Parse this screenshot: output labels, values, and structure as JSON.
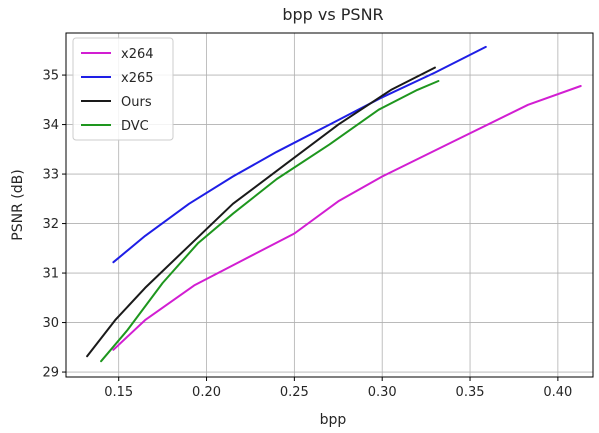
{
  "chart_data": {
    "type": "line",
    "title": "bpp vs PSNR",
    "xlabel": "bpp",
    "ylabel": "PSNR (dB)",
    "xlim": [
      0.12,
      0.42
    ],
    "ylim": [
      28.9,
      35.85
    ],
    "xticks": [
      0.15,
      0.2,
      0.25,
      0.3,
      0.35,
      0.4
    ],
    "xtick_labels": [
      "0.15",
      "0.20",
      "0.25",
      "0.30",
      "0.35",
      "0.40"
    ],
    "yticks": [
      29,
      30,
      31,
      32,
      33,
      34,
      35
    ],
    "ytick_labels": [
      "29",
      "30",
      "31",
      "32",
      "33",
      "34",
      "35"
    ],
    "grid": true,
    "legend_position": "top-left",
    "series": [
      {
        "name": "x264",
        "color": "#d21ed2",
        "points": [
          [
            0.147,
            29.45
          ],
          [
            0.165,
            30.05
          ],
          [
            0.193,
            30.75
          ],
          [
            0.22,
            31.25
          ],
          [
            0.25,
            31.8
          ],
          [
            0.275,
            32.45
          ],
          [
            0.3,
            32.95
          ],
          [
            0.34,
            33.65
          ],
          [
            0.383,
            34.4
          ],
          [
            0.413,
            34.78
          ]
        ]
      },
      {
        "name": "x265",
        "color": "#1e1ee6",
        "points": [
          [
            0.147,
            31.22
          ],
          [
            0.165,
            31.75
          ],
          [
            0.19,
            32.4
          ],
          [
            0.215,
            32.95
          ],
          [
            0.24,
            33.45
          ],
          [
            0.27,
            34.0
          ],
          [
            0.3,
            34.55
          ],
          [
            0.33,
            35.05
          ],
          [
            0.359,
            35.57
          ]
        ]
      },
      {
        "name": "Ours",
        "color": "#1a1a1a",
        "points": [
          [
            0.132,
            29.32
          ],
          [
            0.148,
            30.05
          ],
          [
            0.165,
            30.7
          ],
          [
            0.19,
            31.55
          ],
          [
            0.215,
            32.4
          ],
          [
            0.245,
            33.2
          ],
          [
            0.275,
            34.0
          ],
          [
            0.305,
            34.7
          ],
          [
            0.33,
            35.15
          ]
        ]
      },
      {
        "name": "DVC",
        "color": "#1e961e",
        "points": [
          [
            0.14,
            29.22
          ],
          [
            0.155,
            29.85
          ],
          [
            0.175,
            30.8
          ],
          [
            0.195,
            31.6
          ],
          [
            0.215,
            32.2
          ],
          [
            0.24,
            32.9
          ],
          [
            0.27,
            33.6
          ],
          [
            0.298,
            34.3
          ],
          [
            0.32,
            34.7
          ],
          [
            0.332,
            34.88
          ]
        ]
      }
    ]
  }
}
